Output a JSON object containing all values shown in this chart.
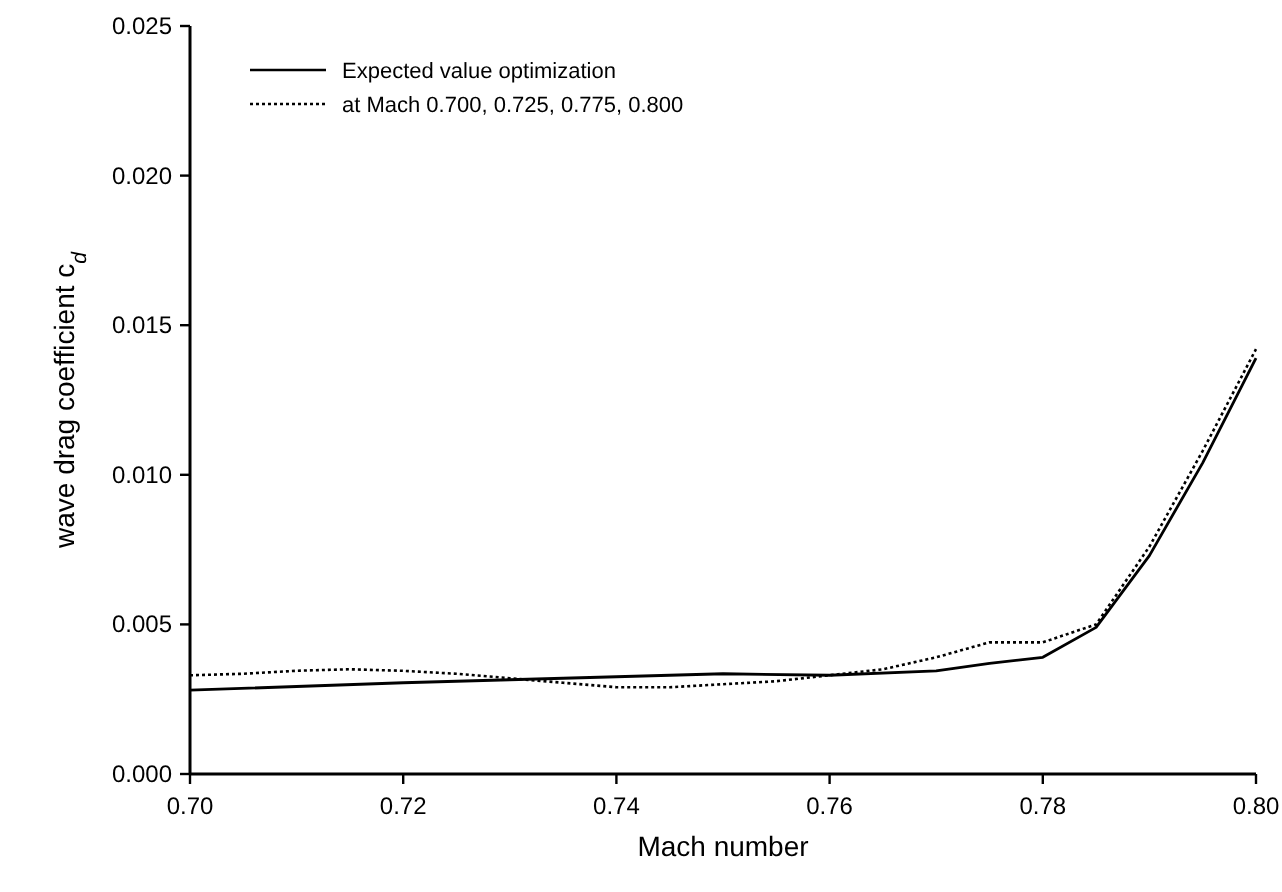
{
  "chart_data": {
    "type": "line",
    "xlabel": "Mach number",
    "ylabel": "wave drag coefficient c$_{d}$",
    "xlim": [
      0.7,
      0.8
    ],
    "xticks": [
      {
        "value": 0.7,
        "label": "0.70"
      },
      0.72,
      0.74,
      0.76,
      0.78,
      {
        "value": 0.8,
        "label": "0.80"
      }
    ],
    "ylim": [
      0,
      0.025
    ],
    "yticks": [
      {
        "value": 0,
        "label": "0.000"
      },
      0.005,
      {
        "value": 0.01,
        "label": "0.010"
      },
      0.015,
      {
        "value": 0.02,
        "label": "0.020"
      },
      0.025
    ],
    "legend": "top left",
    "grid": false,
    "series": [
      {
        "name": "Expected value optimization",
        "color": "#000000",
        "line_style": "solid",
        "x": [
          0.7,
          0.72,
          0.73,
          0.74,
          0.75,
          0.76,
          0.77,
          0.775,
          0.78,
          0.785,
          0.79,
          0.795,
          0.8
        ],
        "values": [
          0.0028,
          0.00305,
          0.00315,
          0.00325,
          0.00335,
          0.0033,
          0.00345,
          0.0037,
          0.0039,
          0.0049,
          0.0073,
          0.0104,
          0.0139
        ]
      },
      {
        "name": "at Mach 0.700, 0.725, 0.775, 0.800",
        "color": "#000000",
        "line_style": "dotted",
        "x": [
          0.7,
          0.705,
          0.71,
          0.715,
          0.72,
          0.725,
          0.73,
          0.735,
          0.74,
          0.745,
          0.75,
          0.755,
          0.76,
          0.765,
          0.77,
          0.775,
          0.78,
          0.785,
          0.79,
          0.795,
          0.8
        ],
        "values": [
          0.0033,
          0.00335,
          0.00345,
          0.0035,
          0.00345,
          0.00335,
          0.0032,
          0.00305,
          0.0029,
          0.0029,
          0.003,
          0.0031,
          0.0033,
          0.0035,
          0.0039,
          0.0044,
          0.0044,
          0.005,
          0.0076,
          0.0108,
          0.0142
        ]
      }
    ]
  }
}
